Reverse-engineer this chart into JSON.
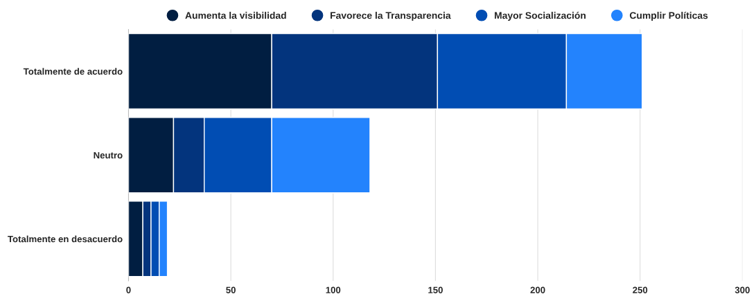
{
  "chart_data": {
    "type": "bar",
    "orientation": "horizontal",
    "stacked": true,
    "categories": [
      "Totalmente de acuerdo",
      "Neutro",
      "Totalmente en desacuerdo"
    ],
    "series": [
      {
        "name": "Aumenta la visibilidad",
        "color": "#011e41",
        "values": [
          70,
          22,
          7
        ]
      },
      {
        "name": "Favorece la Transparencia",
        "color": "#03347d",
        "values": [
          81,
          15,
          4
        ]
      },
      {
        "name": "Mayor Socialización",
        "color": "#014db3",
        "values": [
          63,
          33,
          4
        ]
      },
      {
        "name": "Cumplir Políticas",
        "color": "#2383fd",
        "values": [
          37,
          48,
          4
        ]
      }
    ],
    "xlim": [
      0,
      300
    ],
    "xticks": [
      0,
      50,
      100,
      150,
      200,
      250,
      300
    ],
    "grid": "x",
    "legend": "top"
  }
}
